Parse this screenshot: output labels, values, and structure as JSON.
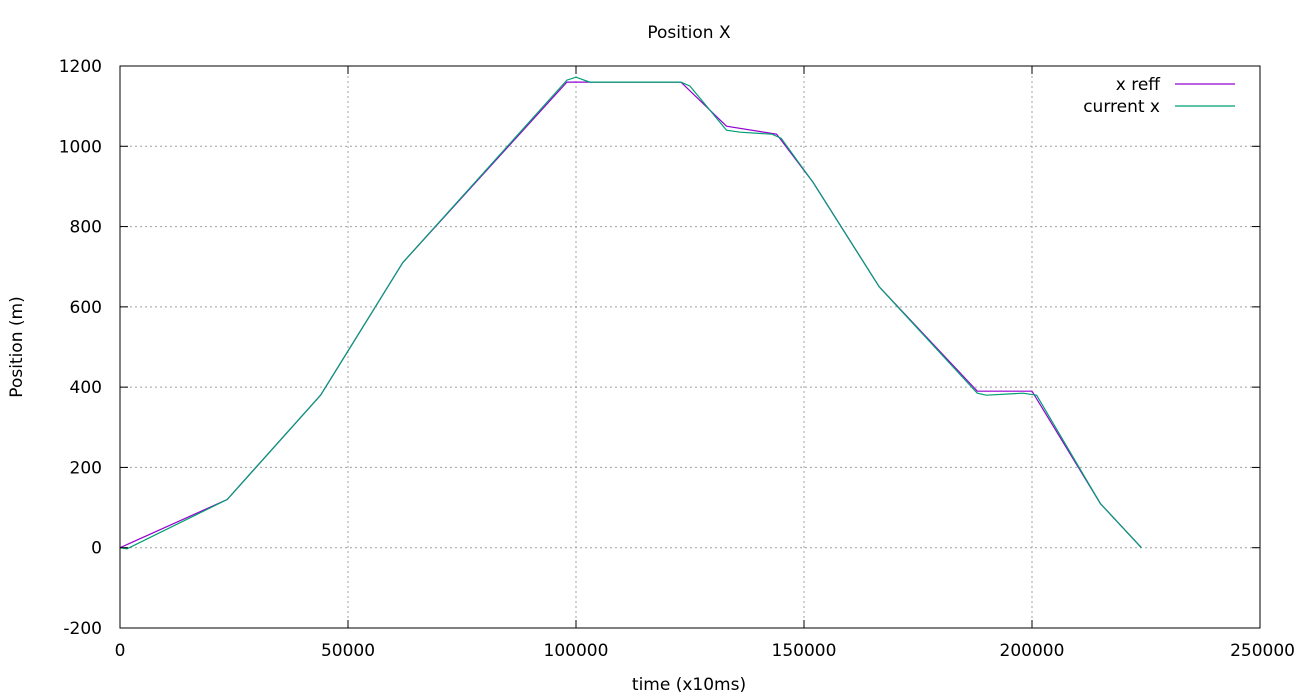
{
  "chart_data": {
    "type": "line",
    "title": "Position X",
    "xlabel": "time (x10ms)",
    "ylabel": "Position (m)",
    "xlim": [
      0,
      250000
    ],
    "ylim": [
      -200,
      1200
    ],
    "x_ticks": [
      0,
      50000,
      100000,
      150000,
      200000,
      250000
    ],
    "y_ticks": [
      -200,
      0,
      200,
      400,
      600,
      800,
      1000,
      1200
    ],
    "grid": true,
    "legend_position": "top-right",
    "series": [
      {
        "name": "x reff",
        "color": "#9400d3",
        "x": [
          0,
          23500,
          44000,
          62000,
          98000,
          107000,
          123000,
          133000,
          144000,
          152000,
          166500,
          188000,
          200000,
          215000,
          224000
        ],
        "y": [
          0,
          120,
          380,
          710,
          1160,
          1160,
          1160,
          1050,
          1030,
          910,
          650,
          390,
          390,
          110,
          0
        ]
      },
      {
        "name": "current x",
        "color": "#009e73",
        "x": [
          0,
          1500,
          23500,
          44000,
          62000,
          98000,
          100000,
          103000,
          123000,
          125000,
          133000,
          136000,
          143000,
          145000,
          152000,
          166500,
          188000,
          190000,
          198000,
          201000,
          215000,
          224000
        ],
        "y": [
          0,
          -3,
          120,
          380,
          710,
          1165,
          1172,
          1160,
          1160,
          1150,
          1040,
          1035,
          1030,
          1020,
          910,
          650,
          385,
          380,
          385,
          380,
          110,
          0
        ]
      }
    ]
  }
}
